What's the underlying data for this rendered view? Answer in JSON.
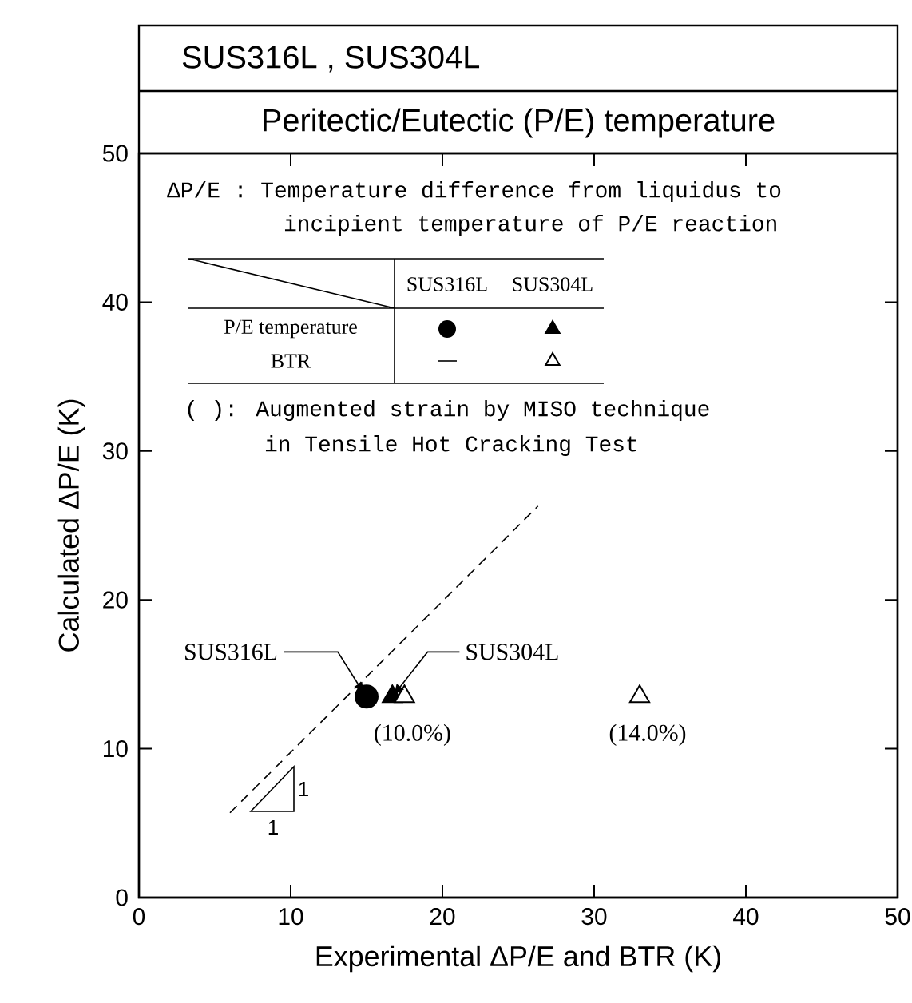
{
  "chart_data": {
    "type": "scatter",
    "title": "SUS316L , SUS304L",
    "subtitle": "Peritectic/Eutectic (P/E) temperature",
    "xlabel": "Experimental ΔP/E and BTR (K)",
    "ylabel": "Calculated ΔP/E (K)",
    "xlim": [
      0,
      50
    ],
    "ylim": [
      0,
      50
    ],
    "xticks": [
      0,
      10,
      20,
      30,
      40,
      50
    ],
    "yticks": [
      0,
      10,
      20,
      30,
      40,
      50
    ],
    "grid": false,
    "line_style": "dashed",
    "series": [
      {
        "marker": "circle",
        "color": "#000000",
        "x": [
          15.0
        ],
        "values": [
          13.5
        ]
      },
      {
        "marker": "triangle",
        "color": "#000000",
        "x": [
          16.7
        ],
        "values": [
          13.5
        ]
      },
      {
        "marker": "triangle",
        "color": "#ffffff",
        "x": [
          17.5,
          33.0
        ],
        "values": [
          13.5,
          13.5
        ]
      },
      {
        "type": "line",
        "color": "#000000",
        "x": [
          6.0,
          26.3
        ],
        "values": [
          5.7,
          26.3
        ]
      }
    ],
    "annotations": [
      "ΔP/E : Temperature difference from liquidus to",
      "incipient temperature of P/E reaction",
      "SUS316L",
      "SUS304L",
      "P/E temperature",
      "BTR",
      "( ): Augmented strain by MISO technique",
      "in Tensile Hot Cracking Test",
      {
        "text": "SUS316L",
        "x": 15.0,
        "y": 13.5
      },
      {
        "text": "SUS304L",
        "x": 16.7,
        "y": 13.5
      },
      {
        "text": "(10.0%)",
        "x": 17.5,
        "y": 13.5
      },
      {
        "text": "(14.0%)",
        "x": 33.0,
        "y": 13.5
      },
      "1",
      "1"
    ]
  }
}
